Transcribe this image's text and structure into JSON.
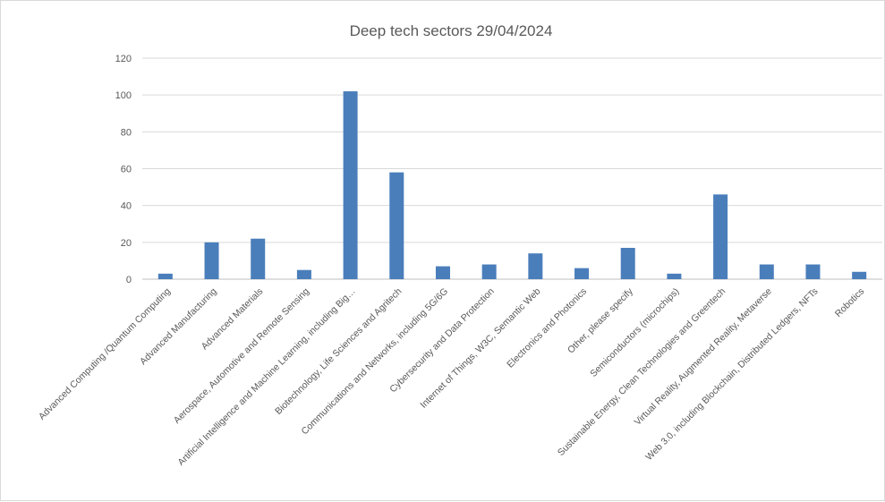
{
  "chart_data": {
    "type": "bar",
    "title": "Deep tech sectors 29/04/2024",
    "xlabel": "",
    "ylabel": "",
    "ylim": [
      0,
      120
    ],
    "yticks": [
      0,
      20,
      40,
      60,
      80,
      100,
      120
    ],
    "grid": true,
    "legend": "none",
    "bar_color": "#4a7ebb",
    "categories": [
      "Advanced Computing /Quantum Computing",
      "Advanced Manufacturing",
      "Advanced Materials",
      "Aerospace, Automotive and Remote Sensing",
      "Artificial Intelligence and Machine Learning, including Big…",
      "Biotechnology, Life Sciences and Agritech",
      "Communications and Networks, including 5G/6G",
      "Cybersecurity and Data Protection",
      "Internet of Things, W3C, Semantic Web",
      "Electronics and Photonics",
      "Other, please specify",
      "Semiconductors (microchips)",
      "Sustainable Energy, Clean Technologies and Greentech",
      "Virtual Reality, Augmented Reality, Metaverse",
      "Web 3.0, including Blockchain, Distributed Ledgers, NFTs",
      "Robotics"
    ],
    "values": [
      3,
      20,
      22,
      5,
      102,
      58,
      7,
      8,
      14,
      6,
      17,
      3,
      46,
      8,
      8,
      4
    ]
  }
}
